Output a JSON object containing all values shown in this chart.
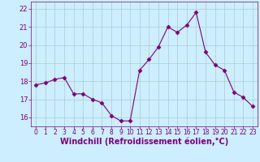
{
  "x": [
    0,
    1,
    2,
    3,
    4,
    5,
    6,
    7,
    8,
    9,
    10,
    11,
    12,
    13,
    14,
    15,
    16,
    17,
    18,
    19,
    20,
    21,
    22,
    23
  ],
  "y": [
    17.8,
    17.9,
    18.1,
    18.2,
    17.3,
    17.3,
    17.0,
    16.8,
    16.1,
    15.8,
    15.8,
    18.6,
    19.2,
    19.9,
    21.0,
    20.7,
    21.1,
    21.8,
    19.6,
    18.9,
    18.6,
    17.4,
    17.1,
    16.6
  ],
  "line_color": "#7b007b",
  "marker": "D",
  "marker_size": 2.5,
  "bg_color": "#cceeff",
  "grid_color": "#aacccc",
  "xlabel": "Windchill (Refroidissement éolien,°C)",
  "xlabel_fontsize": 7,
  "xtick_fontsize": 5.5,
  "ytick_fontsize": 6,
  "ylim": [
    15.5,
    22.4
  ],
  "xlim": [
    -0.5,
    23.5
  ],
  "yticks": [
    16,
    17,
    18,
    19,
    20,
    21,
    22
  ],
  "xticks": [
    0,
    1,
    2,
    3,
    4,
    5,
    6,
    7,
    8,
    9,
    10,
    11,
    12,
    13,
    14,
    15,
    16,
    17,
    18,
    19,
    20,
    21,
    22,
    23
  ]
}
